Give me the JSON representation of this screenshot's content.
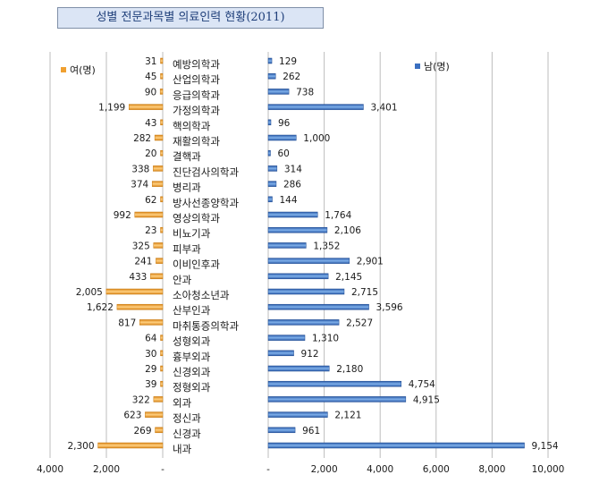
{
  "chart_data": {
    "type": "bar",
    "title": "성별 전문과목별 의료인력 현황(2011)",
    "categories": [
      "예방의학과",
      "산업의학과",
      "응급의학과",
      "가정의학과",
      "핵의학과",
      "재활의학과",
      "결핵과",
      "진단검사의학과",
      "병리과",
      "방사선종양학과",
      "영상의학과",
      "비뇨기과",
      "피부과",
      "이비인후과",
      "안과",
      "소아청소년과",
      "산부인과",
      "마취통증의학과",
      "성형외과",
      "흉부외과",
      "신경외과",
      "정형외과",
      "외과",
      "정신과",
      "신경과",
      "내과"
    ],
    "series": [
      {
        "name": "여(명)",
        "color": "#f0a030",
        "values": [
          31,
          45,
          90,
          1199,
          43,
          282,
          20,
          338,
          374,
          62,
          992,
          23,
          325,
          241,
          433,
          2005,
          1622,
          817,
          64,
          30,
          29,
          39,
          322,
          623,
          269,
          2300
        ],
        "labels": [
          "31",
          "45",
          "90",
          "1,199",
          "43",
          "282",
          "20",
          "338",
          "374",
          "62",
          "992",
          "23",
          "325",
          "241",
          "433",
          "2,005",
          "1,622",
          "817",
          "64",
          "30",
          "29",
          "39",
          "322",
          "623",
          "269",
          "2,300"
        ]
      },
      {
        "name": "남(명)",
        "color": "#3a6fc0",
        "values": [
          129,
          262,
          738,
          3401,
          96,
          1000,
          60,
          314,
          286,
          144,
          1764,
          2106,
          1352,
          2901,
          2145,
          2715,
          3596,
          2527,
          1310,
          912,
          2180,
          4754,
          4915,
          2121,
          961,
          9154
        ],
        "labels": [
          "129",
          "262",
          "738",
          "3,401",
          "96",
          "1,000",
          "60",
          "314",
          "286",
          "144",
          "1,764",
          "2,106",
          "1,352",
          "2,901",
          "2,145",
          "2,715",
          "3,596",
          "2,527",
          "1,310",
          "912",
          "2,180",
          "4,754",
          "4,915",
          "2,121",
          "961",
          "9,154"
        ]
      }
    ],
    "female_axis": {
      "range": [
        0,
        4000
      ],
      "reversed": true,
      "ticks": [
        4000,
        2000,
        0
      ],
      "tick_labels": [
        "4,000",
        "2,000",
        "-"
      ]
    },
    "male_axis": {
      "range": [
        0,
        10000
      ],
      "ticks": [
        0,
        2000,
        4000,
        6000,
        8000,
        10000
      ],
      "tick_labels": [
        "-",
        "2,000",
        "4,000",
        "6,000",
        "8,000",
        "10,000"
      ]
    },
    "legend": {
      "female": "여(명)",
      "male": "남(명)",
      "female_position": "top-left",
      "male_position": "top-right"
    }
  }
}
